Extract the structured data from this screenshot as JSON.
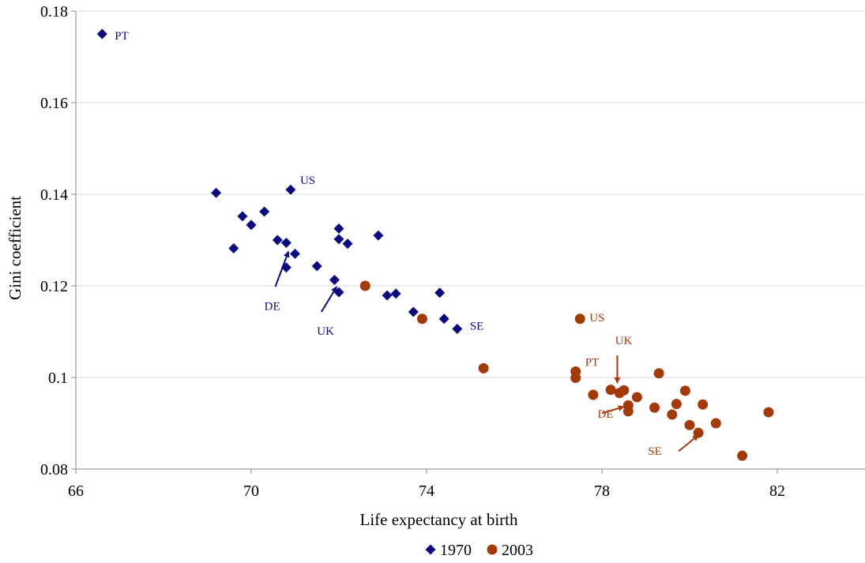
{
  "chart_data": {
    "type": "scatter",
    "xlabel": "Life expectancy at birth",
    "ylabel": "Gini coefficient",
    "xlim": [
      66,
      84
    ],
    "ylim": [
      0.08,
      0.18
    ],
    "x_ticks": [
      66,
      70,
      74,
      78,
      82
    ],
    "y_ticks": [
      0.08,
      0.1,
      0.12,
      0.14,
      0.16,
      0.18
    ],
    "x_tick_labels": [
      "66",
      "70",
      "74",
      "78",
      "82"
    ],
    "y_tick_labels": [
      "0.08",
      "0.1",
      "0.12",
      "0.14",
      "0.16",
      "0.18"
    ],
    "grid": "horizontal",
    "legend_position": "bottom",
    "series": [
      {
        "name": "1970",
        "marker": "diamond",
        "color": "#0a0a7d",
        "points": [
          [
            66.6,
            0.175
          ],
          [
            69.2,
            0.1403
          ],
          [
            69.6,
            0.1282
          ],
          [
            69.8,
            0.1352
          ],
          [
            70.0,
            0.1333
          ],
          [
            70.3,
            0.1362
          ],
          [
            70.6,
            0.13
          ],
          [
            70.8,
            0.1294
          ],
          [
            70.8,
            0.124
          ],
          [
            70.9,
            0.141
          ],
          [
            71.0,
            0.127
          ],
          [
            71.5,
            0.1243
          ],
          [
            71.9,
            0.1213
          ],
          [
            72.0,
            0.1325
          ],
          [
            72.0,
            0.1302
          ],
          [
            72.0,
            0.1186
          ],
          [
            72.2,
            0.1292
          ],
          [
            72.9,
            0.131
          ],
          [
            73.1,
            0.1179
          ],
          [
            73.3,
            0.1183
          ],
          [
            73.7,
            0.1143
          ],
          [
            74.3,
            0.1185
          ],
          [
            74.4,
            0.1128
          ],
          [
            74.7,
            0.1106
          ]
        ]
      },
      {
        "name": "2003",
        "marker": "circle",
        "color": "#a33a0c",
        "points": [
          [
            72.6,
            0.12
          ],
          [
            73.9,
            0.1128
          ],
          [
            75.3,
            0.102
          ],
          [
            77.4,
            0.1013
          ],
          [
            77.4,
            0.0999
          ],
          [
            77.5,
            0.1128
          ],
          [
            77.8,
            0.0962
          ],
          [
            78.2,
            0.0973
          ],
          [
            78.4,
            0.0966
          ],
          [
            78.5,
            0.0972
          ],
          [
            78.6,
            0.0939
          ],
          [
            78.6,
            0.0926
          ],
          [
            78.8,
            0.0957
          ],
          [
            79.2,
            0.0934
          ],
          [
            79.3,
            0.1009
          ],
          [
            79.6,
            0.0919
          ],
          [
            79.7,
            0.0942
          ],
          [
            79.9,
            0.0971
          ],
          [
            80.0,
            0.0896
          ],
          [
            80.2,
            0.0879
          ],
          [
            80.3,
            0.0941
          ],
          [
            80.6,
            0.09
          ],
          [
            81.2,
            0.0829
          ],
          [
            81.8,
            0.0924
          ]
        ]
      }
    ],
    "annotations": [
      {
        "text": "PT",
        "series": 0,
        "anchor": [
          66.6,
          0.175
        ],
        "dx": 16,
        "dy": 2
      },
      {
        "text": "US",
        "series": 0,
        "anchor": [
          70.9,
          0.141
        ],
        "dx": 12,
        "dy": -12
      },
      {
        "text": "SE",
        "series": 0,
        "anchor": [
          74.7,
          0.1106
        ],
        "dx": 16,
        "dy": -4
      },
      {
        "text": "DE",
        "series": 0,
        "label_at": [
          70.3,
          0.1147
        ],
        "arrow_from": [
          70.55,
          0.1198
        ],
        "arrow_to": [
          70.85,
          0.1275
        ]
      },
      {
        "text": "UK",
        "series": 0,
        "label_at": [
          71.5,
          0.1093
        ],
        "arrow_from": [
          71.6,
          0.1143
        ],
        "arrow_to": [
          71.95,
          0.1198
        ]
      },
      {
        "text": "US",
        "series": 1,
        "anchor": [
          77.5,
          0.1128
        ],
        "dx": 12,
        "dy": -2
      },
      {
        "text": "PT",
        "series": 1,
        "anchor": [
          77.4,
          0.1013
        ],
        "dx": 12,
        "dy": -12
      },
      {
        "text": "UK",
        "series": 1,
        "label_at": [
          78.3,
          0.1072
        ],
        "arrow_from": [
          78.35,
          0.1048
        ],
        "arrow_to": [
          78.35,
          0.0988
        ]
      },
      {
        "text": "DE",
        "series": 1,
        "label_at": [
          77.9,
          0.0912
        ],
        "arrow_from": [
          78.0,
          0.0922
        ],
        "arrow_to": [
          78.5,
          0.0936
        ]
      },
      {
        "text": "SE",
        "series": 1,
        "label_at": [
          79.05,
          0.0831
        ],
        "arrow_from": [
          79.75,
          0.0839
        ],
        "arrow_to": [
          80.2,
          0.0874
        ]
      }
    ]
  }
}
